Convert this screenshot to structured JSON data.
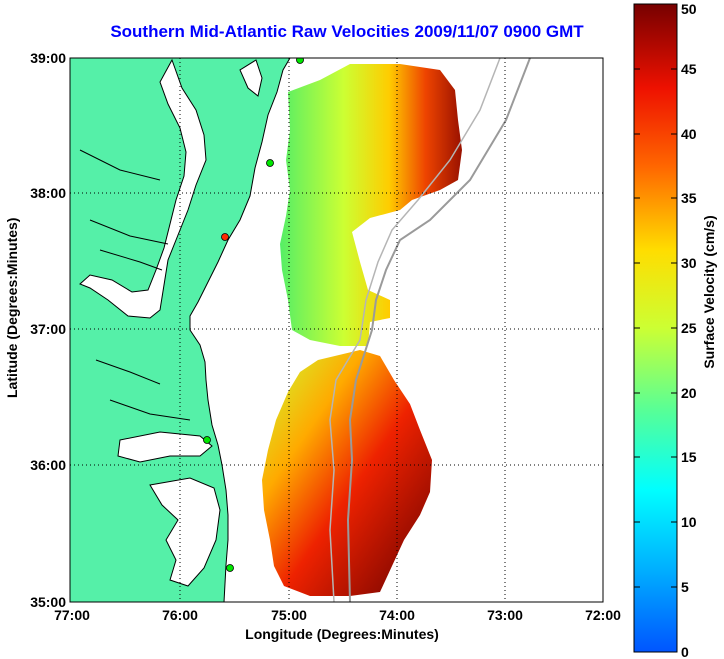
{
  "title": "Southern Mid-Atlantic Raw Velocities 2009/11/07 0900 GMT",
  "xlabel": "Longitude (Degrees:Minutes)",
  "ylabel": "Latitude (Degrees:Minutes)",
  "colorbar": {
    "label": "Surface Velocity (cm/s)",
    "min": 0,
    "max": 50,
    "ticks": [
      "0",
      "5",
      "10",
      "15",
      "20",
      "25",
      "30",
      "35",
      "40",
      "45",
      "50"
    ]
  },
  "map": {
    "lon_ticks": [
      "77:00",
      "76:00",
      "75:00",
      "74:00",
      "73:00",
      "72:00"
    ],
    "lat_ticks": [
      "39:00",
      "38:00",
      "37:00",
      "36:00",
      "35:00"
    ],
    "grid": "dotted",
    "land_color": "#55f0a8",
    "water_color": "#ffffff",
    "station_colors": [
      "#00e600",
      "#ff2a00"
    ]
  }
}
